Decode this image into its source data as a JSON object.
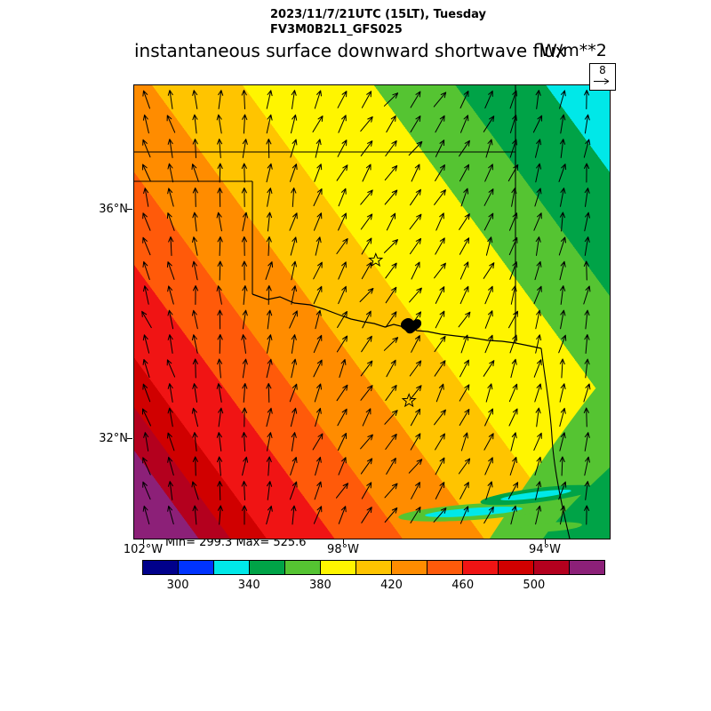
{
  "header": {
    "datetime": "2023/11/7/21UTC (15LT), Tuesday",
    "model": "FV3M0B2L1_GFS025",
    "title": "instantaneous surface downward shortwave flux",
    "units": "W/m**2"
  },
  "wind_ref": {
    "value": "8"
  },
  "axes": {
    "y_ticks": [
      "36°N",
      "32°N"
    ],
    "x_ticks": [
      "102°W",
      "98°W",
      "94°W"
    ]
  },
  "stats": {
    "text": "Min= 299.3 Max= 525.6",
    "min": 299.3,
    "max": 525.6
  },
  "chart_data": {
    "type": "heatmap",
    "title": "instantaneous surface downward shortwave flux",
    "units": "W/m**2",
    "datetime": "2023/11/7/21UTC (15LT), Tuesday",
    "model": "FV3M0B2L1_GFS025",
    "min": 299.3,
    "max": 525.6,
    "x_tick_labels": [
      "102°W",
      "98°W",
      "94°W"
    ],
    "y_tick_labels": [
      "36°N",
      "32°N"
    ],
    "wind_reference_value": 8,
    "colorbar": {
      "tick_labels": [
        "300",
        "340",
        "380",
        "420",
        "460",
        "500"
      ],
      "interval_per_segment": 20,
      "segment_colors": [
        "#00008B",
        "#0033FF",
        "#00E8E8",
        "#00A347",
        "#55C432",
        "#FFF500",
        "#FFC400",
        "#FF8C00",
        "#FF5A0A",
        "#F01414",
        "#D00000",
        "#B4001E",
        "#8C2078"
      ]
    },
    "field_orientation": "flux increases from northeast (~300 W/m**2, cyan) to southwest (>520 W/m**2, purple)",
    "field_bands_ne_to_sw": [
      {
        "color": "#0033FF",
        "to": 0.025
      },
      {
        "color": "#00E8E8",
        "to": 0.1
      },
      {
        "color": "#00A347",
        "to": 0.2
      },
      {
        "color": "#55C432",
        "to": 0.29
      },
      {
        "color": "#FFF500",
        "to": 0.435
      },
      {
        "color": "#FFC400",
        "to": 0.535
      },
      {
        "color": "#FF8C00",
        "to": 0.625
      },
      {
        "color": "#FF5A0A",
        "to": 0.7
      },
      {
        "color": "#F01414",
        "to": 0.775
      },
      {
        "color": "#D00000",
        "to": 0.815
      },
      {
        "color": "#B4001E",
        "to": 0.85
      },
      {
        "color": "#8C2078",
        "to": 1.0
      }
    ],
    "star_markers": [
      {
        "x": 0.508,
        "y": 0.386
      },
      {
        "x": 0.578,
        "y": 0.696
      }
    ]
  }
}
